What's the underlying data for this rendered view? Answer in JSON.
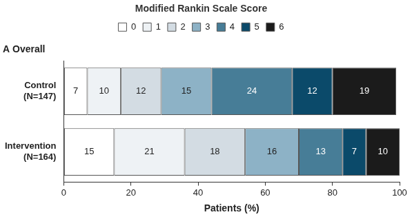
{
  "chart_data": {
    "type": "bar",
    "orientation": "horizontal",
    "stacked": true,
    "title": "Modified Rankin Scale Score",
    "subtitle": "A Overall",
    "x_label": "Patients (%)",
    "categories": [
      "Control (N=147)",
      "Intervention (N=164)"
    ],
    "series": [
      {
        "name": "0",
        "color": "#ffffff",
        "values": [
          7,
          15
        ]
      },
      {
        "name": "1",
        "color": "#eef2f5",
        "values": [
          10,
          21
        ]
      },
      {
        "name": "2",
        "color": "#d3dce3",
        "values": [
          12,
          18
        ]
      },
      {
        "name": "3",
        "color": "#8db2c6",
        "values": [
          15,
          16
        ]
      },
      {
        "name": "4",
        "color": "#477d97",
        "values": [
          24,
          13
        ]
      },
      {
        "name": "5",
        "color": "#0b4a6a",
        "values": [
          12,
          7
        ]
      },
      {
        "name": "6",
        "color": "#1b1b1b",
        "values": [
          19,
          10
        ]
      }
    ],
    "xlim": [
      0,
      100
    ],
    "xticks": [
      0,
      20,
      40,
      60,
      80,
      100
    ],
    "grid": false,
    "legend": "top",
    "data_labels": true
  }
}
